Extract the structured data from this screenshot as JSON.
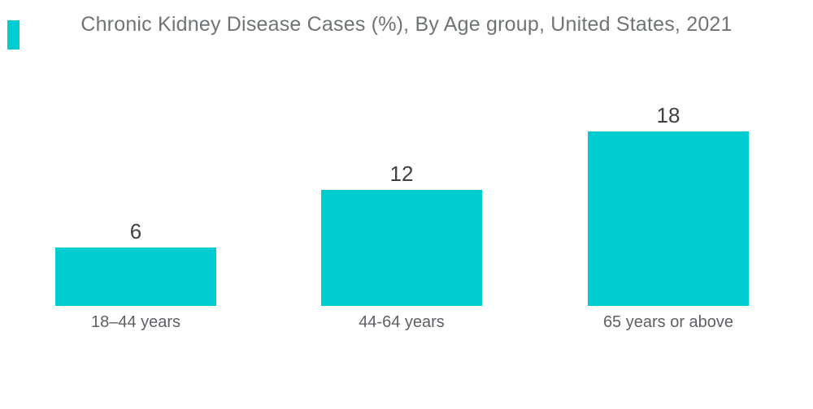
{
  "page": {
    "background": "#ffffff"
  },
  "logo": {
    "name": "teal-brand-mark",
    "color": "#00CCD2"
  },
  "chart_data": {
    "type": "bar",
    "title": "Chronic Kidney Disease Cases (%), By Age group, United States, 2021",
    "categories": [
      "18–44 years",
      "44-64 years",
      "65 years or above"
    ],
    "values": [
      6,
      12,
      18
    ],
    "xlabel": "",
    "ylabel": "",
    "ylim": [
      0,
      20
    ],
    "grid": false,
    "legend": false,
    "axes_visible": false,
    "bar_color": "#00CCD2",
    "title_color": "#6F7477",
    "value_label_color": "#3C4145",
    "category_label_color": "#5D6165"
  }
}
